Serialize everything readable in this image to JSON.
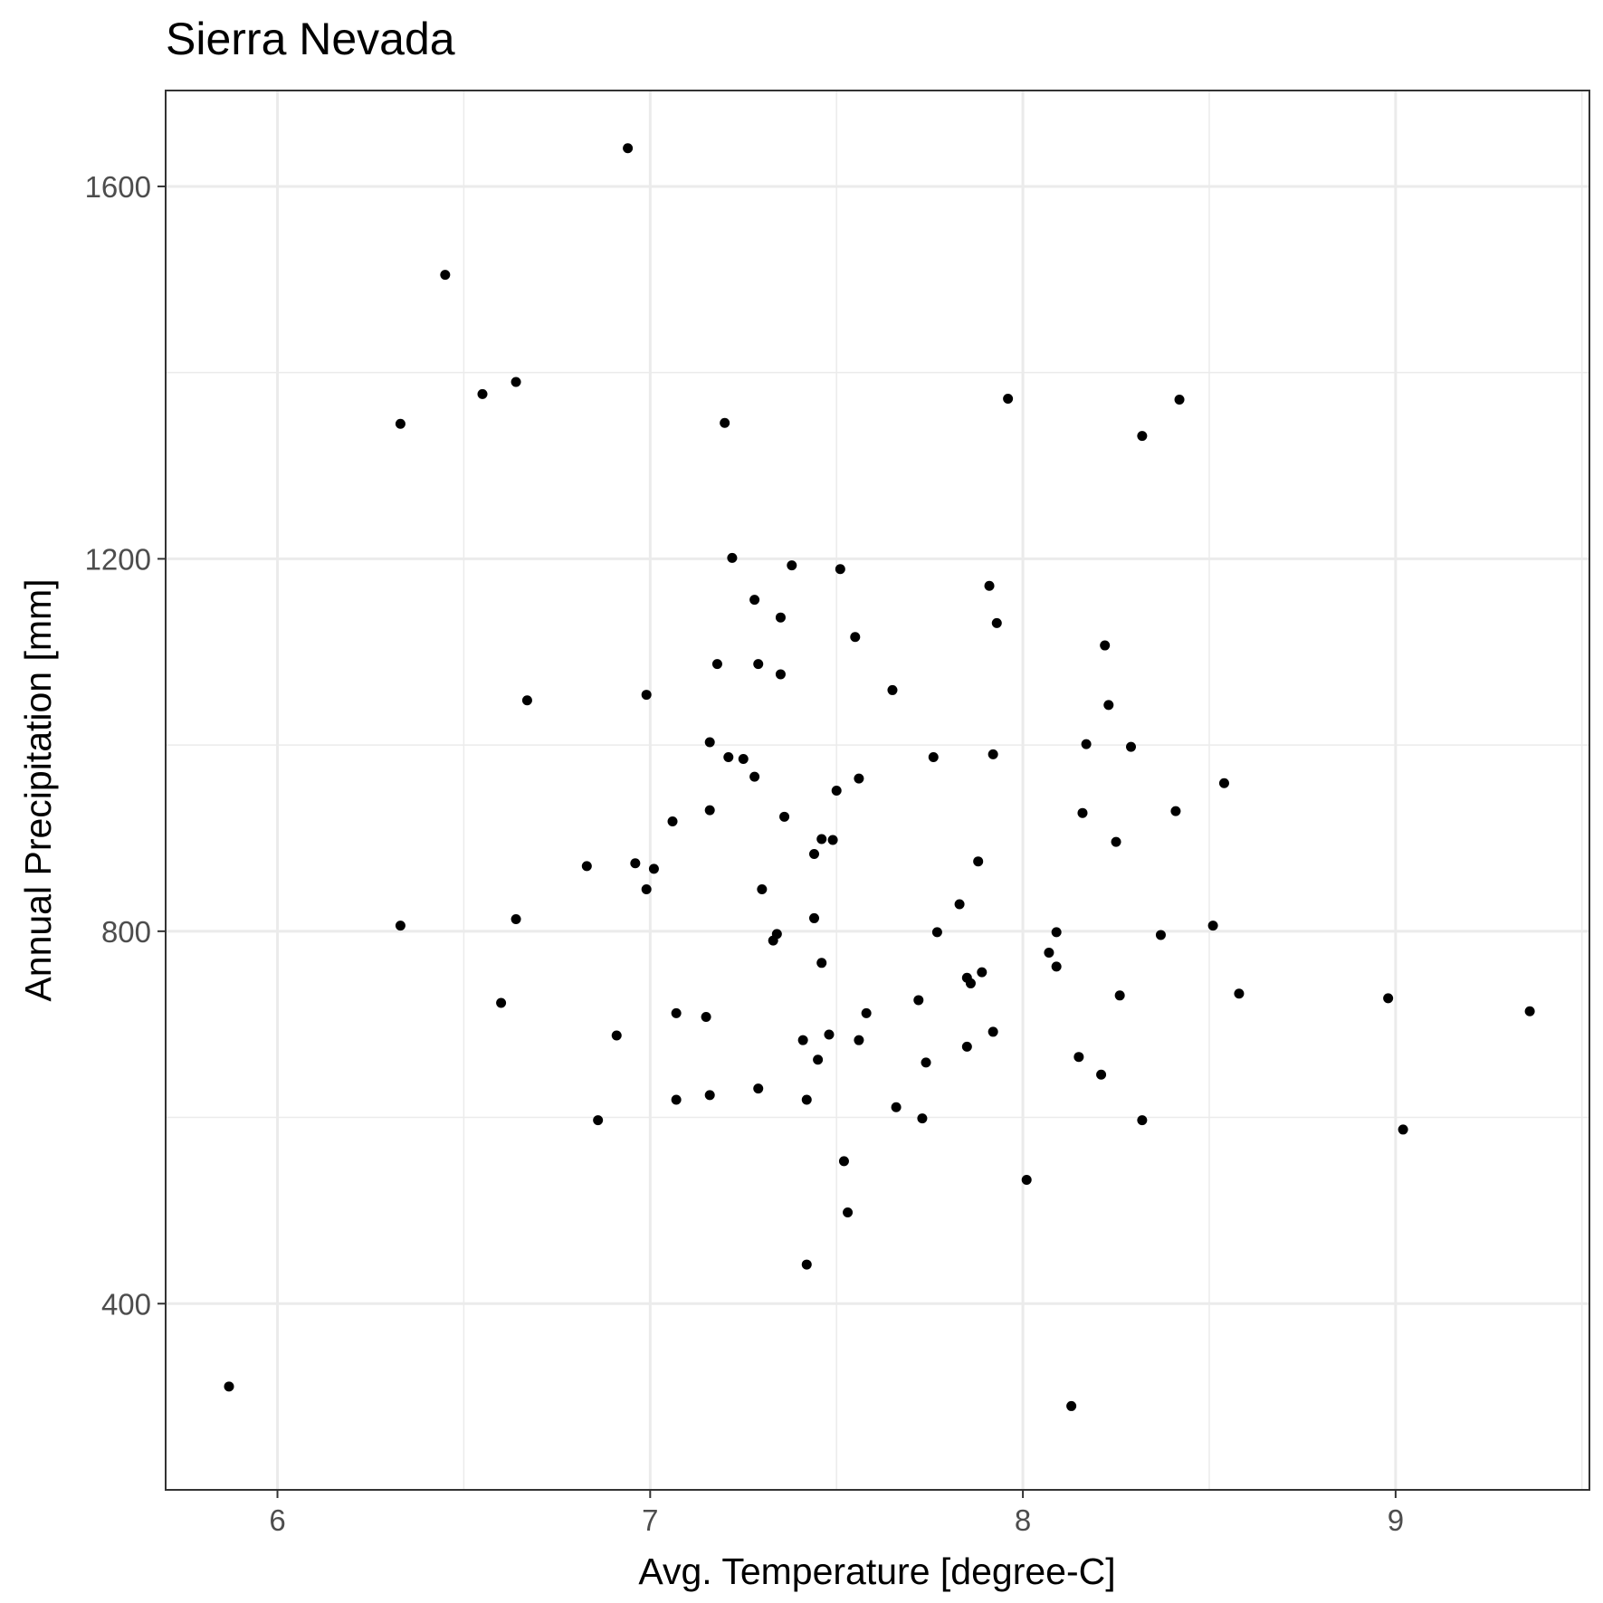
{
  "chart_data": {
    "type": "scatter",
    "title": "Sierra Nevada",
    "xlabel": "Avg. Temperature [degree-C]",
    "ylabel": "Annual Precipitation [mm]",
    "xlim": [
      5.7,
      9.52
    ],
    "ylim": [
      200,
      1703
    ],
    "x_ticks": [
      6,
      7,
      8,
      9
    ],
    "y_ticks": [
      400,
      800,
      1200,
      1600
    ],
    "grid": true,
    "point_color": "#000000",
    "points": [
      [
        5.87,
        311
      ],
      [
        6.33,
        1345
      ],
      [
        6.45,
        1505
      ],
      [
        6.55,
        1377
      ],
      [
        6.64,
        1390
      ],
      [
        6.67,
        1048
      ],
      [
        6.33,
        806
      ],
      [
        6.64,
        813
      ],
      [
        6.6,
        723
      ],
      [
        6.91,
        688
      ],
      [
        6.86,
        597
      ],
      [
        6.83,
        870
      ],
      [
        6.94,
        1641
      ],
      [
        6.96,
        873
      ],
      [
        6.99,
        845
      ],
      [
        6.99,
        1054
      ],
      [
        7.01,
        867
      ],
      [
        7.06,
        918
      ],
      [
        7.07,
        619
      ],
      [
        7.07,
        712
      ],
      [
        7.15,
        708
      ],
      [
        7.16,
        1003
      ],
      [
        7.16,
        930
      ],
      [
        7.16,
        624
      ],
      [
        7.18,
        1087
      ],
      [
        7.2,
        1346
      ],
      [
        7.21,
        987
      ],
      [
        7.22,
        1201
      ],
      [
        7.25,
        985
      ],
      [
        7.28,
        1156
      ],
      [
        7.28,
        966
      ],
      [
        7.29,
        1087
      ],
      [
        7.3,
        845
      ],
      [
        7.29,
        631
      ],
      [
        7.33,
        790
      ],
      [
        7.34,
        797
      ],
      [
        7.35,
        1076
      ],
      [
        7.35,
        1137
      ],
      [
        7.36,
        923
      ],
      [
        7.38,
        1193
      ],
      [
        7.41,
        683
      ],
      [
        7.42,
        619
      ],
      [
        7.42,
        442
      ],
      [
        7.44,
        883
      ],
      [
        7.44,
        814
      ],
      [
        7.45,
        662
      ],
      [
        7.46,
        899
      ],
      [
        7.46,
        766
      ],
      [
        7.48,
        689
      ],
      [
        7.49,
        898
      ],
      [
        7.5,
        951
      ],
      [
        7.51,
        1189
      ],
      [
        7.52,
        553
      ],
      [
        7.53,
        498
      ],
      [
        7.55,
        1116
      ],
      [
        7.56,
        964
      ],
      [
        7.56,
        683
      ],
      [
        7.58,
        712
      ],
      [
        7.66,
        611
      ],
      [
        7.65,
        1059
      ],
      [
        7.72,
        726
      ],
      [
        7.73,
        599
      ],
      [
        7.74,
        659
      ],
      [
        7.76,
        987
      ],
      [
        7.77,
        799
      ],
      [
        7.83,
        829
      ],
      [
        7.85,
        750
      ],
      [
        7.85,
        676
      ],
      [
        7.86,
        744
      ],
      [
        7.88,
        875
      ],
      [
        7.89,
        756
      ],
      [
        7.91,
        1171
      ],
      [
        7.92,
        692
      ],
      [
        7.92,
        990
      ],
      [
        7.93,
        1131
      ],
      [
        7.96,
        1372
      ],
      [
        8.01,
        533
      ],
      [
        8.07,
        777
      ],
      [
        8.09,
        799
      ],
      [
        8.09,
        762
      ],
      [
        8.13,
        290
      ],
      [
        8.15,
        665
      ],
      [
        8.16,
        927
      ],
      [
        8.17,
        1001
      ],
      [
        8.22,
        1107
      ],
      [
        8.21,
        646
      ],
      [
        8.23,
        1043
      ],
      [
        8.25,
        896
      ],
      [
        8.26,
        731
      ],
      [
        8.29,
        998
      ],
      [
        8.32,
        1332
      ],
      [
        8.32,
        597
      ],
      [
        8.37,
        796
      ],
      [
        8.41,
        929
      ],
      [
        8.42,
        1371
      ],
      [
        8.51,
        806
      ],
      [
        8.54,
        959
      ],
      [
        8.58,
        733
      ],
      [
        8.98,
        728
      ],
      [
        9.02,
        587
      ],
      [
        9.36,
        714
      ]
    ]
  }
}
